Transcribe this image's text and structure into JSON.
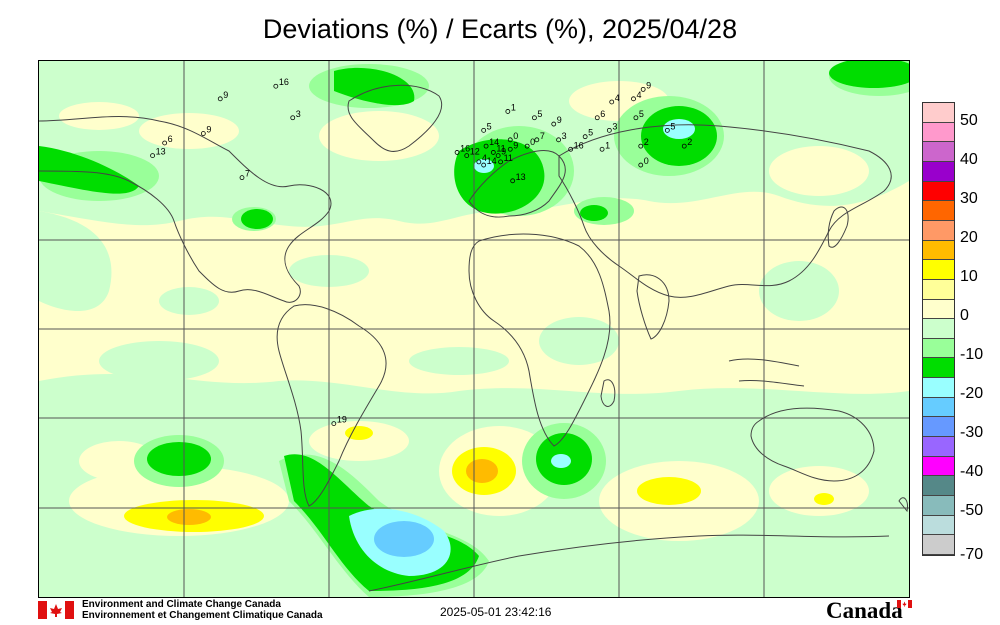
{
  "title": "Deviations (%) / Ecarts (%), 2025/04/28",
  "legend": {
    "labels": [
      "50",
      "40",
      "30",
      "20",
      "10",
      "0",
      "-10",
      "-20",
      "-30",
      "-40",
      "-50",
      "-70"
    ],
    "colors": [
      "#ffcccc",
      "#ff99cc",
      "#cc66cc",
      "#9900cc",
      "#ff0000",
      "#ff6600",
      "#ff9966",
      "#ffbb00",
      "#ffff00",
      "#ffff99",
      "#ffffcc",
      "#ccffcc",
      "#99ff99",
      "#00dd00",
      "#99ffff",
      "#66ccff",
      "#6699ff",
      "#9966ff",
      "#ff00ff",
      "#558888",
      "#88bbbb",
      "#bbdddd",
      "#cccccc"
    ]
  },
  "stations": [
    {
      "label": "16",
      "lon": -82,
      "lat": 72
    },
    {
      "label": "9",
      "lon": -105,
      "lat": 68
    },
    {
      "label": "3",
      "lon": -75,
      "lat": 62
    },
    {
      "label": "9",
      "lon": -112,
      "lat": 57
    },
    {
      "label": "6",
      "lon": -128,
      "lat": 54
    },
    {
      "label": "13",
      "lon": -133,
      "lat": 50
    },
    {
      "label": "7",
      "lon": -96,
      "lat": 43
    },
    {
      "label": "1",
      "lon": 14,
      "lat": 64
    },
    {
      "label": "5",
      "lon": 4,
      "lat": 58
    },
    {
      "label": "14",
      "lon": 5,
      "lat": 53
    },
    {
      "label": "16",
      "lon": -7,
      "lat": 51
    },
    {
      "label": "12",
      "lon": -3,
      "lat": 50
    },
    {
      "label": "11",
      "lon": 8,
      "lat": 51
    },
    {
      "label": "9",
      "lon": 10,
      "lat": 50
    },
    {
      "label": "14",
      "lon": 4,
      "lat": 47
    },
    {
      "label": "4",
      "lon": 2,
      "lat": 48
    },
    {
      "label": "11",
      "lon": 11,
      "lat": 48
    },
    {
      "label": "13",
      "lon": 16,
      "lat": 42
    },
    {
      "label": "0",
      "lon": 15,
      "lat": 55
    },
    {
      "label": "9",
      "lon": 15,
      "lat": 52
    },
    {
      "label": "0",
      "lon": 22,
      "lat": 53
    },
    {
      "label": "7",
      "lon": 26,
      "lat": 55
    },
    {
      "label": "5",
      "lon": 25,
      "lat": 62
    },
    {
      "label": "9",
      "lon": 33,
      "lat": 60
    },
    {
      "label": "3",
      "lon": 35,
      "lat": 55
    },
    {
      "label": "16",
      "lon": 40,
      "lat": 52
    },
    {
      "label": "5",
      "lon": 46,
      "lat": 56
    },
    {
      "label": "6",
      "lon": 51,
      "lat": 62
    },
    {
      "label": "1",
      "lon": 53,
      "lat": 52
    },
    {
      "label": "3",
      "lon": 56,
      "lat": 58
    },
    {
      "label": "4",
      "lon": 57,
      "lat": 67
    },
    {
      "label": "4",
      "lon": 66,
      "lat": 68
    },
    {
      "label": "9",
      "lon": 70,
      "lat": 71
    },
    {
      "label": "5",
      "lon": 67,
      "lat": 62
    },
    {
      "label": "5",
      "lon": 80,
      "lat": 58
    },
    {
      "label": "2",
      "lon": 69,
      "lat": 53
    },
    {
      "label": "0",
      "lon": 69,
      "lat": 47
    },
    {
      "label": "2",
      "lon": 87,
      "lat": 53
    },
    {
      "label": "19",
      "lon": -58,
      "lat": -35
    }
  ],
  "footer": {
    "org_en": "Environment and Climate Change Canada",
    "org_fr": "Environnement et Changement Climatique Canada",
    "timestamp": "2025-05-01 23:42:16",
    "wordmark": "Canada"
  }
}
